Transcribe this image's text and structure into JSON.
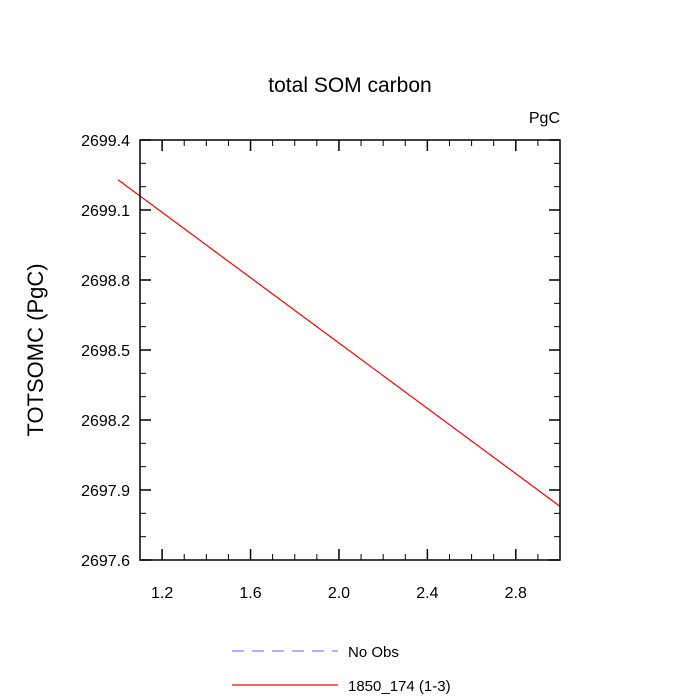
{
  "chart_data": {
    "type": "line",
    "title": "total SOM carbon",
    "units_label": "PgC",
    "xlabel": "",
    "ylabel": "TOTSOMC  (PgC)",
    "xlim": [
      1.1,
      3.0
    ],
    "ylim": [
      2697.6,
      2699.4
    ],
    "x_ticks": [
      1.2,
      1.6,
      2.0,
      2.4,
      2.8
    ],
    "x_tick_labels": [
      "1.2",
      "1.6",
      "2.0",
      "2.4",
      "2.8"
    ],
    "y_ticks": [
      2697.6,
      2697.9,
      2698.2,
      2698.5,
      2698.8,
      2699.1,
      2699.4
    ],
    "y_tick_labels": [
      "2697.6",
      "2697.9",
      "2698.2",
      "2698.5",
      "2698.8",
      "2699.1",
      "2699.4"
    ],
    "series": [
      {
        "name": "No Obs",
        "color": "#8080ff",
        "dash": "dashed",
        "x": [],
        "y": []
      },
      {
        "name": "1850_174 (1-3)",
        "color": "#ff0000",
        "dash": "solid",
        "x": [
          1.0,
          2.0,
          3.0
        ],
        "y": [
          2699.23,
          2698.53,
          2697.83
        ]
      }
    ],
    "legend": [
      {
        "label": "No Obs",
        "color": "#8080ff",
        "dash": "dashed"
      },
      {
        "label": "1850_174 (1-3)",
        "color": "#ff0000",
        "dash": "solid"
      }
    ],
    "grid": false,
    "legend_position": "bottom-center"
  }
}
